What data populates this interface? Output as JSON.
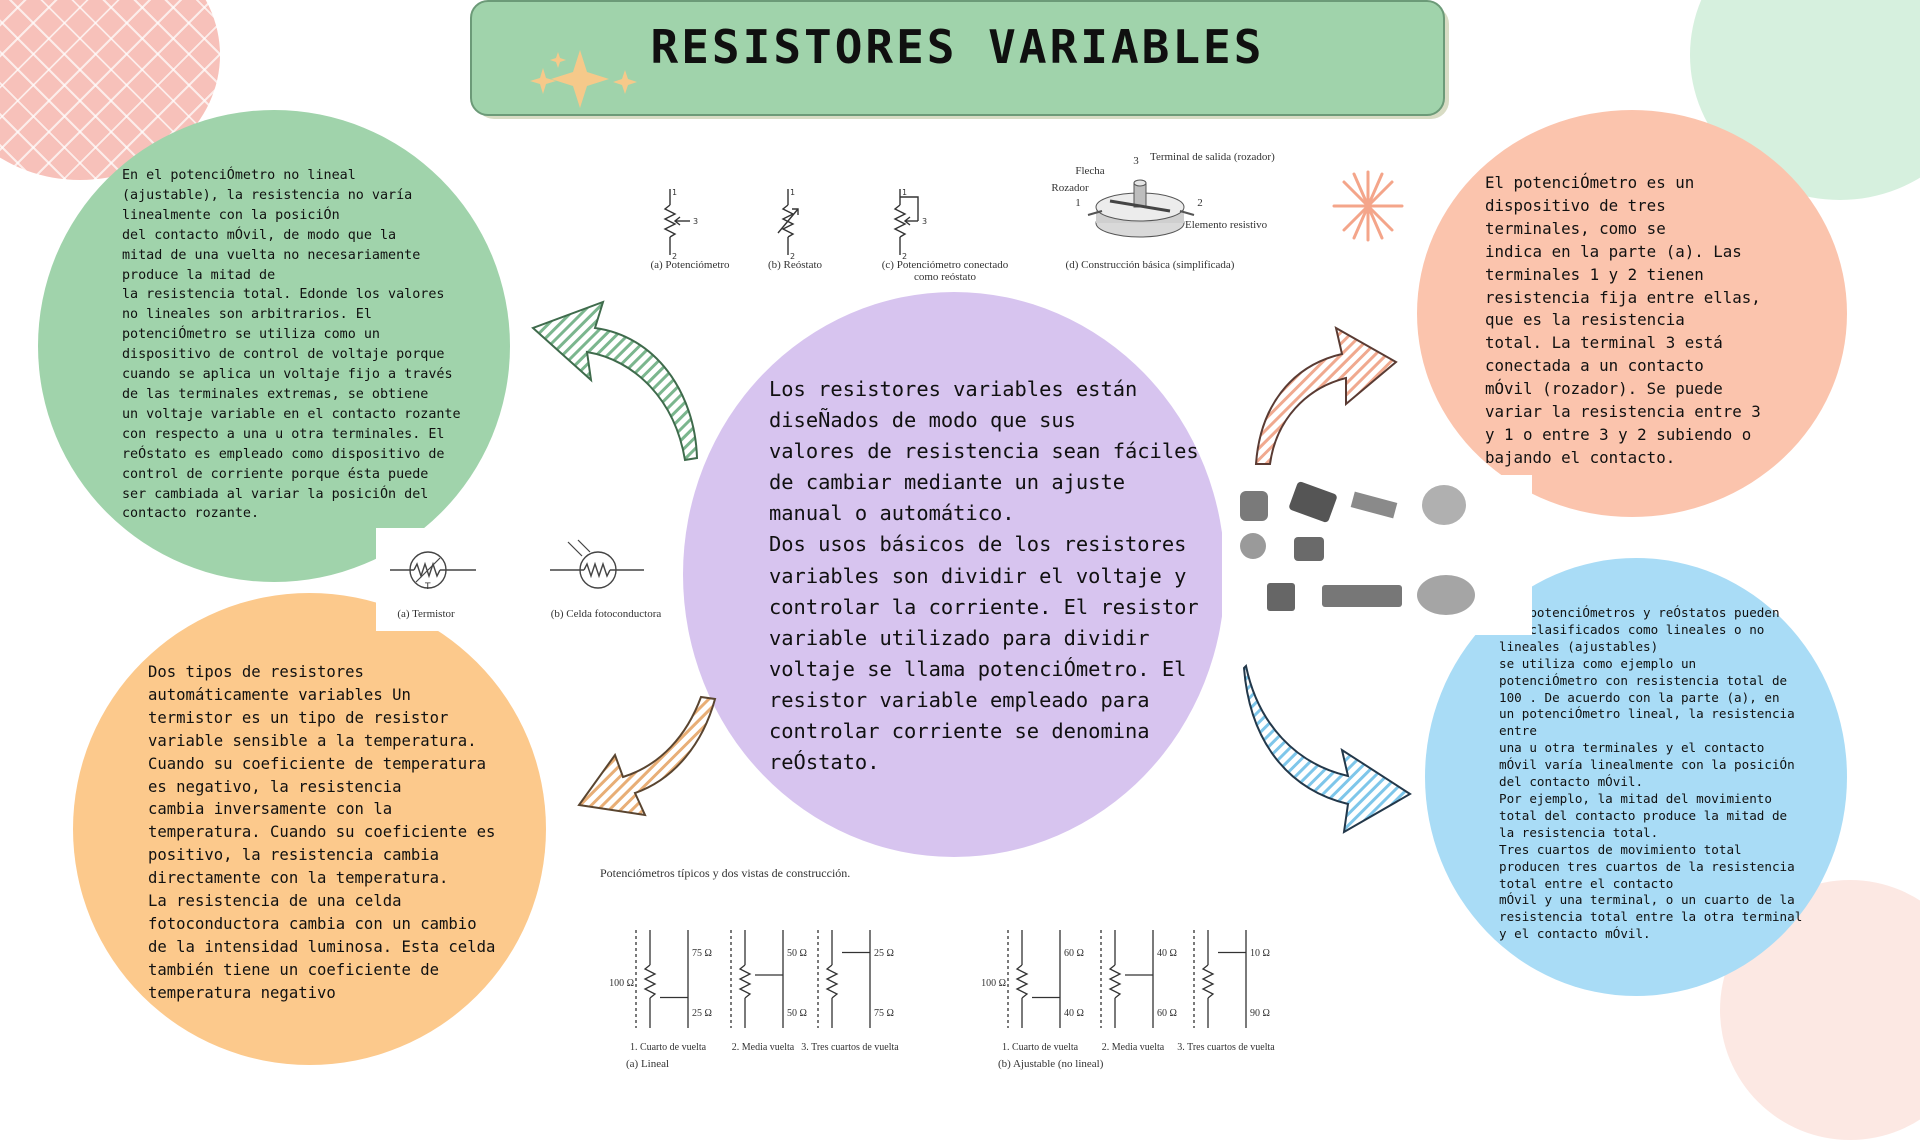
{
  "title": "RESISTORES VARIABLES",
  "colors": {
    "green": "#a0d3ab",
    "purple": "#d7c4ef",
    "salmon": "#fbc4ad",
    "orange": "#fcc98c",
    "blue": "#a9dcf6"
  },
  "texts": {
    "top_left": "En el potenciÓmetro no lineal\n(ajustable), la resistencia no varía\nlinealmente con la posiciÓn\ndel contacto mÓvil, de modo que la\nmitad de una vuelta no necesariamente\nproduce la mitad de\nla resistencia total. Edonde los valores\nno lineales son arbitrarios. El\npotenciÓmetro se utiliza como un\ndispositivo de control de voltaje porque\ncuando se aplica un voltaje fijo a través\nde las terminales extremas, se obtiene\nun voltaje variable en el contacto rozante\ncon respecto a una u otra terminales. El\nreÓstato es empleado como dispositivo de\ncontrol de corriente porque ésta puede\nser cambiada al variar la posiciÓn del\ncontacto rozante.",
    "center": "Los resistores variables están\ndiseÑados de modo que sus\nvalores de resistencia sean fáciles\nde cambiar mediante un ajuste\nmanual o automático.\nDos usos básicos de los resistores\nvariables son dividir el voltaje y\ncontrolar la corriente. El resistor\nvariable utilizado para dividir\nvoltaje se llama potenciÓmetro. El\nresistor variable empleado para\ncontrolar corriente se denomina\nreÓstato.",
    "top_right": "El potenciÓmetro es un\ndispositivo de tres\nterminales, como se\nindica en la parte (a). Las\nterminales 1 y 2 tienen\nresistencia fija entre ellas,\nque es la resistencia\ntotal. La terminal 3 está\nconectada a un contacto\nmÓvil (rozador). Se puede\nvariar la resistencia entre 3\ny 1 o entre 3 y 2 subiendo o\nbajando el contacto.",
    "bottom_left": "Dos tipos de resistores\nautomáticamente variables Un\ntermistor es un tipo de resistor\nvariable sensible a la temperatura.\nCuando su coeficiente de temperatura\nes negativo, la resistencia\ncambia inversamente con la\ntemperatura. Cuando su coeficiente es\npositivo, la resistencia cambia\ndirectamente con la temperatura.\nLa resistencia de una celda\nfotoconductora cambia con un cambio\nde la intensidad luminosa. Esta celda\ntambién tiene un coeficiente de\ntemperatura negativo",
    "bottom_right": "Los potenciÓmetros y reÓstatos pueden\nser clasificados como lineales o no\nlineales (ajustables)\nse utiliza como ejemplo un\npotenciÓmetro con resistencia total de\n100 . De acuerdo con la parte (a), en\nun potenciÓmetro lineal, la resistencia\nentre\nuna u otra terminales y el contacto\nmÓvil varía linealmente con la posiciÓn\ndel contacto mÓvil.\nPor ejemplo, la mitad del movimiento\ntotal del contacto produce la mitad de\nla resistencia total.\nTres cuartos de movimiento total\nproducen tres cuartos de la resistencia\ntotal entre el contacto\nmÓvil y una terminal, o un cuarto de la\nresistencia total entre la otra terminal\ny el contacto mÓvil."
  },
  "fig_symbols": {
    "a": "(a) Potenciómetro",
    "b": "(b) Reóstato",
    "c": "(c) Potenciómetro conectado\ncomo reóstato",
    "d": "(d) Construcción básica (simplificada)",
    "arrow": "Flecha",
    "wiper": "Rozador",
    "out": "Terminal de salida (rozador)",
    "elem": "Elemento resistivo",
    "n1": "1",
    "n2": "2",
    "n3": "3"
  },
  "fig_auto": {
    "a": "(a) Termistor",
    "b": "(b) Celda fotoconductora",
    "t": "T"
  },
  "fig_bottom": {
    "caption": "Potenciómetros típicos y dos vistas de construcción.",
    "circuits": [
      {
        "total": "100 Ω",
        "top": "75 Ω",
        "bottom": "25 Ω",
        "label": "1. Cuarto de vuelta"
      },
      {
        "total": "",
        "top": "50 Ω",
        "bottom": "50 Ω",
        "label": "2. Media vuelta"
      },
      {
        "total": "",
        "top": "25 Ω",
        "bottom": "75 Ω",
        "label": "3. Tres cuartos de vuelta"
      },
      {
        "total": "100 Ω",
        "top": "60 Ω",
        "bottom": "40 Ω",
        "label": "1. Cuarto de vuelta"
      },
      {
        "total": "",
        "top": "40 Ω",
        "bottom": "60 Ω",
        "label": "2. Media vuelta"
      },
      {
        "total": "",
        "top": "10 Ω",
        "bottom": "90 Ω",
        "label": "3. Tres cuartos de vuelta"
      }
    ],
    "group_a": "(a) Lineal",
    "group_b": "(b) Ajustable (no lineal)"
  }
}
